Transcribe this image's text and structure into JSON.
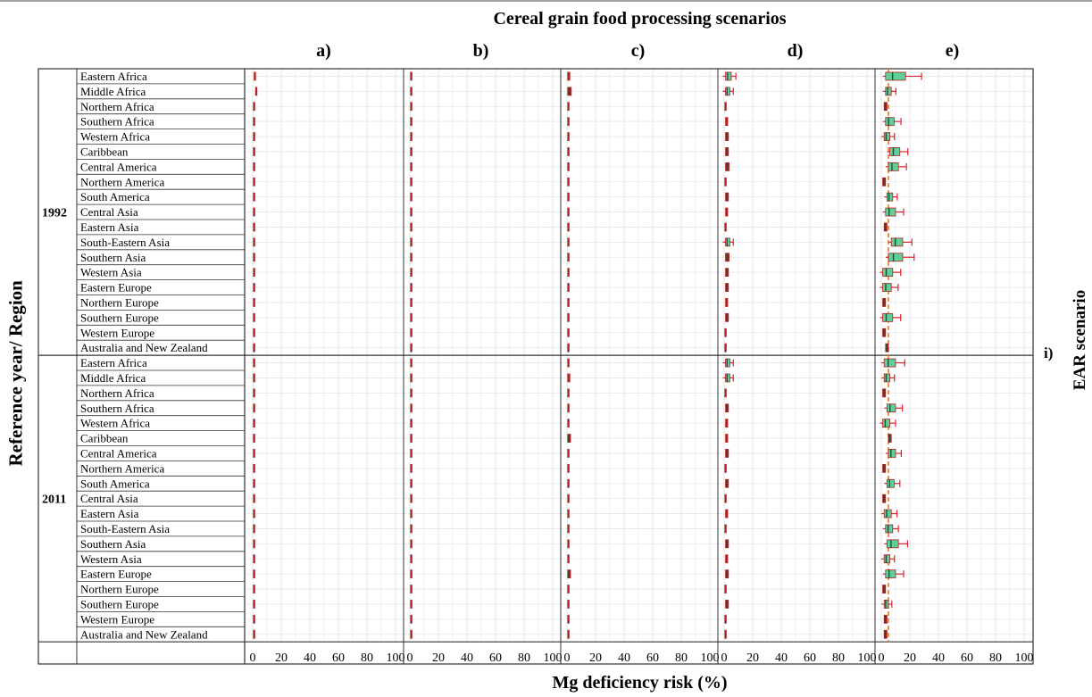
{
  "figure": {
    "title": "Cereal grain food processing scenarios",
    "y_axis_title": "Reference year/ Region",
    "x_axis_title": "Mg deficiency risk (%)",
    "right_label": "EAR scenario",
    "strip_label": "i)",
    "panel_labels": [
      "a)",
      "b)",
      "c)",
      "d)",
      "e)"
    ],
    "years": [
      "1992",
      "2011"
    ],
    "regions": [
      "Eastern Africa",
      "Middle Africa",
      "Northern Africa",
      "Southern Africa",
      "Western Africa",
      "Caribbean",
      "Central America",
      "Northern America",
      "South America",
      "Central Asia",
      "Eastern Asia",
      "South-Eastern Asia",
      "Southern Asia",
      "Western Asia",
      "Eastern Europe",
      "Northern Europe",
      "Southern Europe",
      "Western Europe",
      "Australia and New Zealand"
    ],
    "x_ticks": [
      0,
      20,
      40,
      60,
      80,
      100
    ],
    "colors": {
      "whisker": "#e0202a",
      "box_fill": "#5fcf9a",
      "box_edge": "#b22222",
      "median": "#1f4e3d",
      "reference_line": "#f07a1a",
      "grid": "#e6e6e6"
    }
  },
  "chart_data": {
    "type": "box",
    "orientation": "horizontal",
    "x_range": [
      0,
      100
    ],
    "reference_line_x": {
      "e)": 5
    },
    "facets": [
      {
        "panel": "a)",
        "year": "1992",
        "values": [
          [
            1,
            1.5
          ],
          [
            2,
            3
          ],
          [
            0.5,
            1
          ],
          [
            0.5,
            1
          ],
          [
            0.5,
            1
          ],
          [
            0.5,
            1
          ],
          [
            0.5,
            1
          ],
          [
            0.5,
            1
          ],
          [
            0.5,
            1
          ],
          [
            0.5,
            1
          ],
          [
            0.5,
            1
          ],
          [
            0.5,
            1
          ],
          [
            0.5,
            1
          ],
          [
            0.5,
            1
          ],
          [
            0.5,
            1
          ],
          [
            0.5,
            1
          ],
          [
            0.5,
            1
          ],
          [
            0.5,
            1
          ],
          [
            0.5,
            1
          ]
        ]
      },
      {
        "panel": "b)",
        "year": "1992",
        "values": [
          [
            0.5,
            1.5
          ],
          [
            0.5,
            1.5
          ],
          [
            0.5,
            1
          ],
          [
            0.5,
            1
          ],
          [
            0.5,
            1
          ],
          [
            0.5,
            1
          ],
          [
            0.5,
            1
          ],
          [
            0.5,
            1
          ],
          [
            0.5,
            1
          ],
          [
            0.5,
            1
          ],
          [
            0.5,
            1
          ],
          [
            0.5,
            1
          ],
          [
            0.5,
            1
          ],
          [
            0.5,
            1
          ],
          [
            0.5,
            1
          ],
          [
            0.5,
            1
          ],
          [
            0.5,
            1
          ],
          [
            0.5,
            1
          ],
          [
            0.5,
            1
          ]
        ]
      },
      {
        "panel": "c)",
        "year": "1992",
        "values": [
          [
            0.5,
            2
          ],
          [
            0.5,
            3
          ],
          [
            0.5,
            1
          ],
          [
            0.5,
            1.5
          ],
          [
            0.5,
            1.5
          ],
          [
            0.5,
            1
          ],
          [
            0.5,
            1.5
          ],
          [
            0.5,
            1
          ],
          [
            0.5,
            1.5
          ],
          [
            0.5,
            1
          ],
          [
            0.5,
            1
          ],
          [
            0.5,
            1.5
          ],
          [
            0.5,
            1.5
          ],
          [
            0.5,
            1.5
          ],
          [
            0.5,
            1
          ],
          [
            0.5,
            1
          ],
          [
            0.5,
            1
          ],
          [
            0.5,
            1
          ],
          [
            0.5,
            1
          ]
        ]
      },
      {
        "panel": "d)",
        "year": "1992",
        "values": [
          [
            1,
            5
          ],
          [
            1,
            4
          ],
          [
            0.5,
            1.5
          ],
          [
            1,
            2.5
          ],
          [
            1,
            3
          ],
          [
            1,
            3
          ],
          [
            1,
            3.5
          ],
          [
            0.5,
            1.5
          ],
          [
            1,
            3
          ],
          [
            1,
            2.5
          ],
          [
            0.5,
            1.5
          ],
          [
            1,
            4
          ],
          [
            1,
            3.5
          ],
          [
            1,
            3
          ],
          [
            1,
            3
          ],
          [
            1,
            2.5
          ],
          [
            1,
            3
          ],
          [
            0.5,
            1.5
          ],
          [
            0.5,
            1.5
          ]
        ]
      },
      {
        "panel": "e)",
        "year": "1992",
        "values": [
          [
            3,
            17
          ],
          [
            3,
            7
          ],
          [
            2,
            4
          ],
          [
            3,
            9
          ],
          [
            2,
            6
          ],
          [
            6,
            13
          ],
          [
            5,
            12
          ],
          [
            1,
            3
          ],
          [
            4,
            8
          ],
          [
            3,
            10
          ],
          [
            2,
            4
          ],
          [
            7,
            15
          ],
          [
            5,
            15
          ],
          [
            1,
            8
          ],
          [
            1,
            7
          ],
          [
            1,
            3
          ],
          [
            1,
            8
          ],
          [
            1,
            3
          ],
          [
            3,
            5
          ]
        ]
      },
      {
        "panel": "a)",
        "year": "2011",
        "values": [
          [
            0.5,
            1
          ],
          [
            0.5,
            1
          ],
          [
            0.5,
            1
          ],
          [
            0.5,
            1
          ],
          [
            0.5,
            1
          ],
          [
            0.5,
            1
          ],
          [
            0.5,
            1
          ],
          [
            0.5,
            1
          ],
          [
            0.5,
            1
          ],
          [
            0.5,
            1
          ],
          [
            0.5,
            1
          ],
          [
            0.5,
            1
          ],
          [
            0.5,
            1
          ],
          [
            0.5,
            1
          ],
          [
            0.5,
            1
          ],
          [
            0.5,
            1
          ],
          [
            0.5,
            1
          ],
          [
            0.5,
            1
          ],
          [
            0.5,
            1
          ]
        ]
      },
      {
        "panel": "b)",
        "year": "2011",
        "values": [
          [
            0.5,
            1
          ],
          [
            0.5,
            1.5
          ],
          [
            0.5,
            1
          ],
          [
            0.5,
            1
          ],
          [
            0.5,
            1
          ],
          [
            0.5,
            1
          ],
          [
            0.5,
            1
          ],
          [
            0.5,
            1
          ],
          [
            0.5,
            1
          ],
          [
            0.5,
            1
          ],
          [
            0.5,
            1
          ],
          [
            0.5,
            1
          ],
          [
            0.5,
            1
          ],
          [
            0.5,
            1
          ],
          [
            0.5,
            1.5
          ],
          [
            0.5,
            1
          ],
          [
            0.5,
            1
          ],
          [
            0.5,
            1
          ],
          [
            0.5,
            1
          ]
        ]
      },
      {
        "panel": "c)",
        "year": "2011",
        "values": [
          [
            0.5,
            1.5
          ],
          [
            0.5,
            2
          ],
          [
            0.5,
            1
          ],
          [
            0.5,
            1.5
          ],
          [
            0.5,
            1
          ],
          [
            0.5,
            2.5
          ],
          [
            0.5,
            1.5
          ],
          [
            0.5,
            1
          ],
          [
            0.5,
            1.5
          ],
          [
            0.5,
            1
          ],
          [
            0.5,
            1
          ],
          [
            0.5,
            1
          ],
          [
            0.5,
            1
          ],
          [
            0.5,
            1
          ],
          [
            0.5,
            2.5
          ],
          [
            0.5,
            1
          ],
          [
            0.5,
            1
          ],
          [
            0.5,
            1
          ],
          [
            0.5,
            1
          ]
        ]
      },
      {
        "panel": "d)",
        "year": "2011",
        "values": [
          [
            1,
            4
          ],
          [
            1,
            4
          ],
          [
            0.5,
            1.5
          ],
          [
            1,
            3
          ],
          [
            1,
            2.5
          ],
          [
            1,
            2.5
          ],
          [
            1,
            3
          ],
          [
            0.5,
            1.5
          ],
          [
            1,
            3
          ],
          [
            0.5,
            1.5
          ],
          [
            1,
            2.5
          ],
          [
            0.5,
            1.5
          ],
          [
            1,
            3
          ],
          [
            1,
            2.5
          ],
          [
            1,
            3
          ],
          [
            0.5,
            1.5
          ],
          [
            1,
            3
          ],
          [
            0.5,
            1.5
          ],
          [
            0.5,
            1.5
          ]
        ]
      },
      {
        "panel": "e)",
        "year": "2011",
        "values": [
          [
            2,
            10
          ],
          [
            2,
            6
          ],
          [
            1,
            3
          ],
          [
            4,
            10
          ],
          [
            1,
            6
          ],
          [
            5,
            7
          ],
          [
            5,
            10
          ],
          [
            1,
            3
          ],
          [
            4,
            9
          ],
          [
            1,
            3
          ],
          [
            2,
            7
          ],
          [
            3,
            8
          ],
          [
            4,
            12
          ],
          [
            2,
            6
          ],
          [
            3,
            10
          ],
          [
            1,
            3
          ],
          [
            2,
            5
          ],
          [
            2,
            4
          ],
          [
            2,
            4
          ]
        ]
      }
    ]
  }
}
